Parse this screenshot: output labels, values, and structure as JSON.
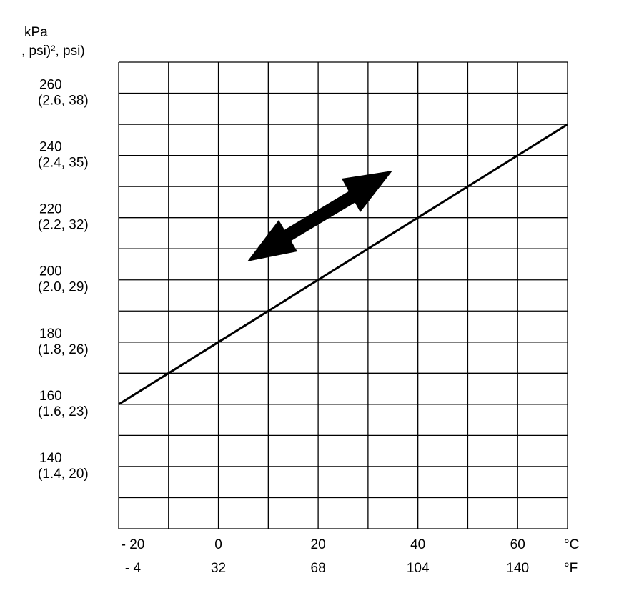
{
  "chart_data": {
    "type": "line",
    "y_label": [
      "kPa",
      ", psi)², psi)"
    ],
    "x_unit": "°C",
    "x_unit2": "°F",
    "x": [
      -20,
      -10,
      0,
      10,
      20,
      30,
      40,
      50,
      60,
      70
    ],
    "series": [
      {
        "color": "#000000",
        "values": [
          160,
          170,
          180,
          190,
          200,
          210,
          220,
          230,
          240,
          250
        ]
      }
    ],
    "xlim": [
      -20,
      70
    ],
    "ylim": [
      120,
      270
    ],
    "xticks": [
      {
        "value": -20,
        "label": "- 20"
      },
      0,
      20,
      40,
      60
    ],
    "xtick_sublabels": [
      "- 4",
      "32",
      "68",
      "104",
      "140"
    ],
    "yticks": [
      140,
      160,
      180,
      200,
      220,
      240,
      260
    ],
    "ytick_sublabels": [
      "(1.4, 20)",
      "(1.6, 23)",
      "(1.8, 26)",
      "(2.0, 29)",
      "(2.2, 32)",
      "(2.4, 35)",
      "(2.6, 38)"
    ],
    "xgrid": [
      -20,
      -10,
      0,
      10,
      20,
      30,
      40,
      50,
      60,
      70
    ],
    "ygrid": [
      120,
      130,
      140,
      150,
      160,
      170,
      180,
      190,
      200,
      210,
      220,
      230,
      240,
      250,
      260,
      270
    ],
    "grid": true
  }
}
